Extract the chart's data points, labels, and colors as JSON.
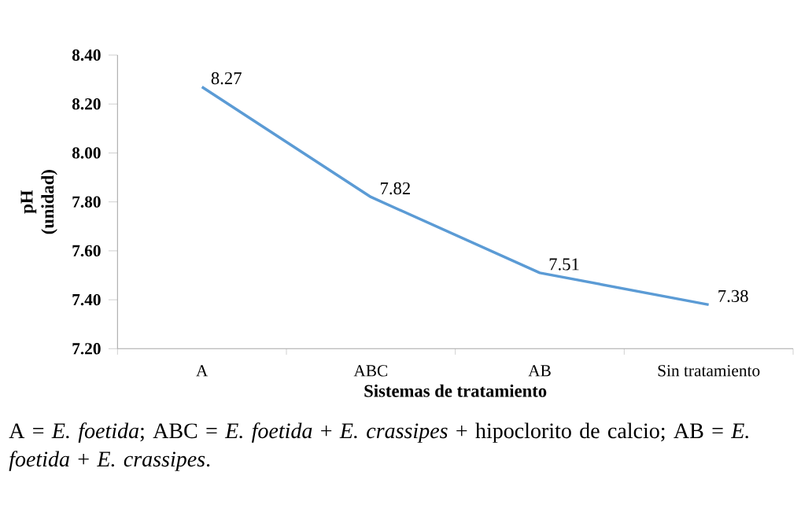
{
  "chart_data": {
    "type": "line",
    "xlabel": "Sistemas de tratamiento",
    "ylabel": "pH (unidad)",
    "categories": [
      "A",
      "ABC",
      "AB",
      "Sin tratamiento"
    ],
    "values": [
      8.27,
      7.82,
      7.51,
      7.38
    ],
    "color": "#5b9bd5",
    "data_labels": true,
    "marker": "none",
    "line_style": "solid",
    "ylim": [
      7.2,
      8.4
    ],
    "yticks": [
      {
        "value": 7.2,
        "label": "7.20"
      },
      {
        "value": 7.4,
        "label": "7.40"
      },
      {
        "value": 7.6,
        "label": "7.60"
      },
      {
        "value": 7.8,
        "label": "7.80"
      },
      {
        "value": 8.0,
        "label": "8.00"
      },
      {
        "value": 8.2,
        "label": "8.20"
      },
      {
        "value": 8.4,
        "label": "8.40"
      }
    ],
    "annotations": [
      "A = *E. foetida*; ABC = *E. foetida* + *E. crassipes* + hipoclorito de calcio; AB = *E. foetida* + *E. crassipes*."
    ]
  }
}
